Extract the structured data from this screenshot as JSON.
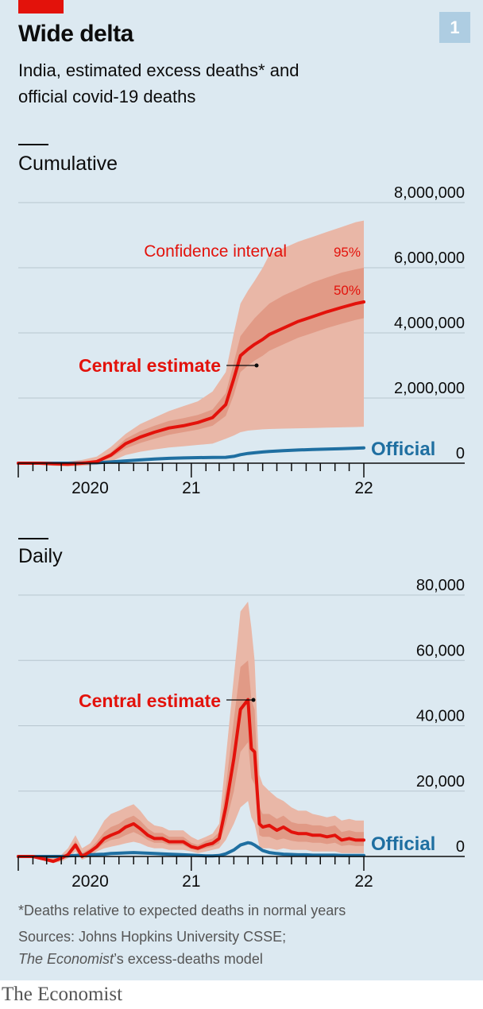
{
  "header": {
    "badge": "1",
    "title": "Wide delta",
    "subtitle": "India, estimated excess deaths* and official covid-19 deaths"
  },
  "footer": {
    "note": "*Deaths relative to expected deaths in normal years",
    "sources_line1": "Sources: Johns Hopkins University CSSE;",
    "sources_publication": "The Economist",
    "sources_line2_rest": "’s excess-deaths model",
    "brand": "The Economist"
  },
  "colors": {
    "estimate": "#e3120b",
    "band95": "#e9b7a7",
    "band50": "#e19a86",
    "official": "#1f6fa1",
    "panel": "#dce9f1",
    "grid": "#b7c6cf"
  },
  "chart_data": [
    {
      "type": "area",
      "title": "Cumulative",
      "ylim": [
        0,
        8000000
      ],
      "yticks": [
        0,
        2000000,
        4000000,
        6000000,
        8000000
      ],
      "ytick_labels": [
        "0",
        "2,000,000",
        "4,000,000",
        "6,000,000",
        "8,000,000"
      ],
      "xlim": [
        "2020-01-01",
        "2022-01-01"
      ],
      "xtick_labels": [
        {
          "label": "2020",
          "x": "2020-06-01"
        },
        {
          "label": "21",
          "x": "2021-01-01"
        },
        {
          "label": "22",
          "x": "2022-01-01"
        }
      ],
      "grid": true,
      "annotations": {
        "ci_label": "Confidence interval",
        "ci95_label": "95%",
        "ci50_label": "50%",
        "central_label": "Central estimate",
        "official_label": "Official"
      },
      "x": [
        "2020-01-01",
        "2020-02-15",
        "2020-03-15",
        "2020-04-15",
        "2020-05-15",
        "2020-06-15",
        "2020-07-15",
        "2020-08-15",
        "2020-09-15",
        "2020-10-15",
        "2020-11-15",
        "2020-12-15",
        "2021-01-15",
        "2021-02-15",
        "2021-03-15",
        "2021-04-01",
        "2021-04-15",
        "2021-05-01",
        "2021-05-15",
        "2021-06-01",
        "2021-06-15",
        "2021-07-15",
        "2021-08-15",
        "2021-09-15",
        "2021-10-15",
        "2021-11-15",
        "2021-12-15",
        "2022-01-01"
      ],
      "series": [
        {
          "name": "Central estimate",
          "values": [
            0,
            0,
            -20000,
            -30000,
            0,
            50000,
            250000,
            600000,
            800000,
            950000,
            1080000,
            1150000,
            1250000,
            1400000,
            1800000,
            2600000,
            3300000,
            3500000,
            3650000,
            3800000,
            3950000,
            4150000,
            4350000,
            4500000,
            4650000,
            4780000,
            4900000,
            4950000
          ]
        },
        {
          "name": "Official",
          "values": [
            0,
            0,
            0,
            1000,
            5000,
            12000,
            40000,
            70000,
            100000,
            130000,
            150000,
            160000,
            170000,
            175000,
            180000,
            210000,
            260000,
            300000,
            320000,
            345000,
            360000,
            385000,
            405000,
            420000,
            435000,
            445000,
            460000,
            470000
          ]
        },
        {
          "name": "95% lower",
          "values": [
            0,
            -50000,
            -80000,
            -100000,
            -80000,
            -50000,
            50000,
            250000,
            350000,
            420000,
            480000,
            520000,
            560000,
            600000,
            750000,
            850000,
            950000,
            1000000,
            1020000,
            1040000,
            1050000,
            1060000,
            1070000,
            1080000,
            1090000,
            1100000,
            1110000,
            1120000
          ]
        },
        {
          "name": "95% upper",
          "values": [
            0,
            30000,
            40000,
            50000,
            100000,
            200000,
            500000,
            900000,
            1200000,
            1400000,
            1600000,
            1750000,
            1900000,
            2200000,
            2800000,
            4000000,
            4900000,
            5300000,
            5600000,
            6000000,
            6400000,
            6600000,
            6800000,
            6950000,
            7100000,
            7250000,
            7400000,
            7450000
          ]
        },
        {
          "name": "50% lower",
          "values": [
            0,
            -10000,
            -30000,
            -40000,
            -20000,
            20000,
            170000,
            450000,
            620000,
            750000,
            870000,
            950000,
            1030000,
            1150000,
            1450000,
            2100000,
            2800000,
            3000000,
            3150000,
            3300000,
            3450000,
            3650000,
            3850000,
            4000000,
            4150000,
            4280000,
            4400000,
            4450000
          ]
        },
        {
          "name": "50% upper",
          "values": [
            0,
            10000,
            0,
            -5000,
            30000,
            90000,
            330000,
            750000,
            980000,
            1150000,
            1300000,
            1380000,
            1480000,
            1650000,
            2150000,
            3100000,
            3900000,
            4200000,
            4450000,
            4700000,
            4900000,
            5150000,
            5350000,
            5550000,
            5700000,
            5850000,
            5950000,
            6000000
          ]
        }
      ]
    },
    {
      "type": "line",
      "title": "Daily",
      "ylim": [
        0,
        80000
      ],
      "yticks": [
        0,
        20000,
        40000,
        60000,
        80000
      ],
      "ytick_labels": [
        "0",
        "20,000",
        "40,000",
        "60,000",
        "80,000"
      ],
      "xlim": [
        "2020-01-01",
        "2022-01-01"
      ],
      "xtick_labels": [
        {
          "label": "2020",
          "x": "2020-06-01"
        },
        {
          "label": "21",
          "x": "2021-01-01"
        },
        {
          "label": "22",
          "x": "2022-01-01"
        }
      ],
      "grid": true,
      "annotations": {
        "central_label": "Central estimate",
        "official_label": "Official"
      },
      "x": [
        "2020-01-01",
        "2020-02-01",
        "2020-03-01",
        "2020-03-15",
        "2020-04-01",
        "2020-04-15",
        "2020-05-01",
        "2020-05-15",
        "2020-06-01",
        "2020-06-15",
        "2020-07-01",
        "2020-07-15",
        "2020-08-01",
        "2020-08-15",
        "2020-09-01",
        "2020-09-15",
        "2020-10-01",
        "2020-10-15",
        "2020-11-01",
        "2020-11-15",
        "2020-12-01",
        "2020-12-15",
        "2021-01-01",
        "2021-01-15",
        "2021-02-01",
        "2021-02-15",
        "2021-03-01",
        "2021-03-15",
        "2021-04-01",
        "2021-04-15",
        "2021-05-01",
        "2021-05-08",
        "2021-05-15",
        "2021-05-25",
        "2021-06-01",
        "2021-06-15",
        "2021-07-01",
        "2021-07-15",
        "2021-08-01",
        "2021-08-15",
        "2021-09-01",
        "2021-09-15",
        "2021-10-01",
        "2021-10-15",
        "2021-11-01",
        "2021-11-15",
        "2021-12-01",
        "2021-12-15",
        "2022-01-01"
      ],
      "series": [
        {
          "name": "Central estimate",
          "values": [
            0,
            0,
            -1000,
            -1500,
            -500,
            500,
            3500,
            0,
            1500,
            3000,
            5500,
            6500,
            7500,
            9000,
            10000,
            8500,
            6500,
            5500,
            5500,
            4500,
            4500,
            4500,
            3000,
            2500,
            3500,
            4000,
            5500,
            15000,
            30000,
            45000,
            48000,
            33000,
            32000,
            10000,
            9000,
            9500,
            8000,
            9000,
            7500,
            7000,
            7000,
            6500,
            6500,
            6000,
            6500,
            5000,
            5500,
            5000,
            5000
          ]
        },
        {
          "name": "Official",
          "values": [
            0,
            0,
            0,
            0,
            0,
            200,
            300,
            400,
            500,
            600,
            700,
            900,
            1000,
            1100,
            1200,
            1100,
            1000,
            900,
            800,
            700,
            600,
            500,
            400,
            300,
            200,
            200,
            300,
            800,
            2000,
            3500,
            4200,
            4000,
            3500,
            2500,
            1800,
            1200,
            900,
            700,
            600,
            500,
            500,
            400,
            400,
            400,
            400,
            300,
            300,
            300,
            300
          ]
        },
        {
          "name": "95% lower",
          "values": [
            0,
            0,
            -1500,
            -2000,
            -1500,
            -500,
            1500,
            -1000,
            0,
            1500,
            2500,
            3000,
            3500,
            4000,
            4500,
            4000,
            3000,
            2500,
            2500,
            2000,
            2000,
            2000,
            1500,
            1000,
            1500,
            2000,
            2500,
            5000,
            10000,
            15000,
            17000,
            12000,
            10000,
            3000,
            2500,
            2500,
            2000,
            2500,
            2000,
            2000,
            2000,
            1500,
            1500,
            1500,
            1500,
            1000,
            1000,
            1000,
            1000
          ]
        },
        {
          "name": "95% upper",
          "values": [
            0,
            0,
            0,
            500,
            500,
            2500,
            6500,
            2500,
            4000,
            7000,
            11000,
            13000,
            14000,
            15000,
            16000,
            14000,
            11000,
            9500,
            9000,
            8000,
            8000,
            8000,
            6000,
            5000,
            6000,
            7000,
            10000,
            30000,
            55000,
            75000,
            78000,
            70000,
            60000,
            25000,
            22000,
            20000,
            18000,
            17000,
            15000,
            14000,
            14000,
            13000,
            12500,
            12000,
            12500,
            11000,
            11500,
            11000,
            11000
          ]
        },
        {
          "name": "50% lower",
          "values": [
            0,
            0,
            -1200,
            -1700,
            -900,
            0,
            2500,
            -500,
            800,
            2200,
            4000,
            5000,
            5500,
            6500,
            7500,
            6500,
            5000,
            4200,
            4200,
            3500,
            3500,
            3500,
            2200,
            1800,
            2500,
            3000,
            4000,
            10000,
            20000,
            32000,
            35000,
            24000,
            22000,
            6500,
            6000,
            6000,
            5000,
            5500,
            4800,
            4500,
            4500,
            4200,
            4200,
            3800,
            4200,
            3200,
            3500,
            3200,
            3200
          ]
        },
        {
          "name": "50% upper",
          "values": [
            0,
            0,
            -500,
            -800,
            0,
            1200,
            4800,
            1000,
            2500,
            4500,
            7500,
            9000,
            10000,
            11500,
            12500,
            11000,
            8500,
            7200,
            7200,
            6000,
            6000,
            6000,
            4200,
            3500,
            4800,
            5500,
            7500,
            21000,
            42000,
            58000,
            60000,
            48000,
            45000,
            15000,
            13000,
            13000,
            11500,
            12500,
            10500,
            10000,
            10000,
            9500,
            9500,
            9000,
            9500,
            7500,
            8000,
            7500,
            7500
          ]
        }
      ]
    }
  ]
}
